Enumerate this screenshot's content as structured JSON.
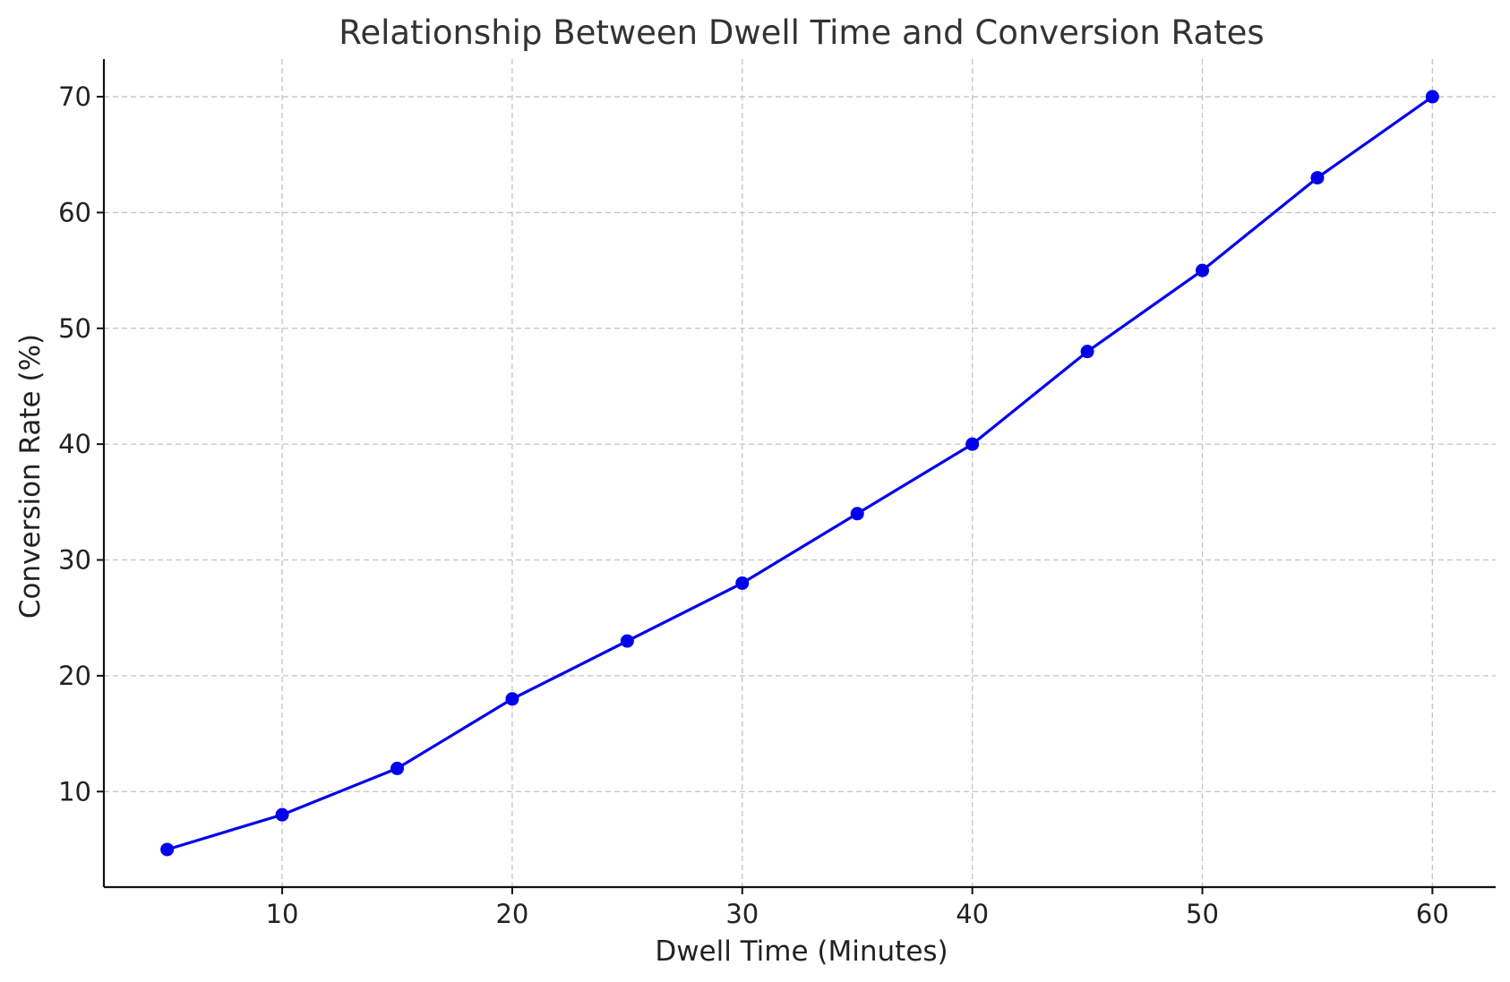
{
  "chart_data": {
    "type": "line",
    "title": "Relationship Between Dwell Time and Conversion Rates",
    "xlabel": "Dwell Time (Minutes)",
    "ylabel": "Conversion Rate (%)",
    "xlim": [
      2.25,
      62.75
    ],
    "ylim": [
      1.75,
      73.25
    ],
    "x_ticks": [
      10,
      20,
      30,
      40,
      50,
      60
    ],
    "y_ticks": [
      10,
      20,
      30,
      40,
      50,
      60,
      70
    ],
    "grid": true,
    "series": [
      {
        "color": "#0000ee",
        "x": [
          5,
          10,
          15,
          20,
          25,
          30,
          35,
          40,
          45,
          50,
          55,
          60
        ],
        "y": [
          5,
          8,
          12,
          18,
          23,
          28,
          34,
          40,
          48,
          55,
          63,
          70
        ]
      }
    ]
  }
}
